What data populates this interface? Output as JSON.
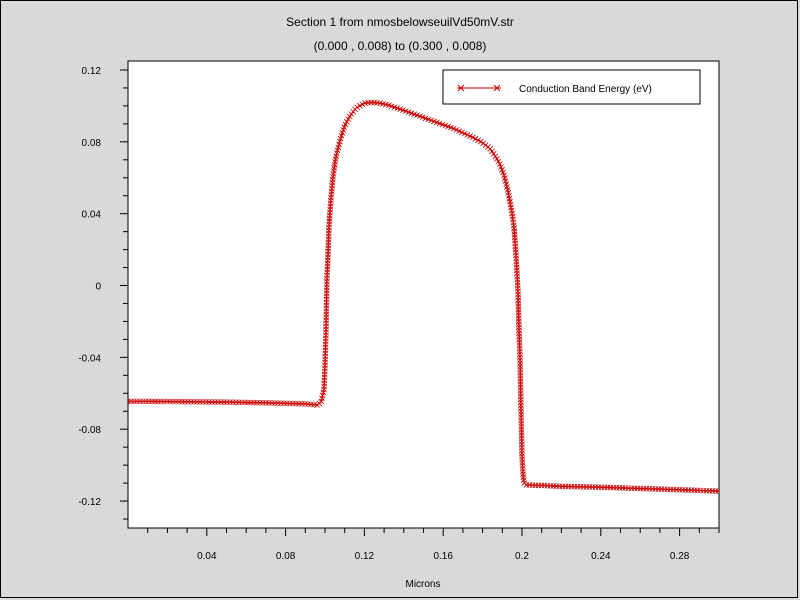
{
  "titles": {
    "line1": "Section 1 from nmosbelowseuilVd50mV.str",
    "line2": "(0.000 , 0.008) to (0.300 , 0.008)"
  },
  "chart_data": {
    "type": "line",
    "title": "Section 1 from nmosbelowseuilVd50mV.str",
    "subtitle": "(0.000 , 0.008) to (0.300 , 0.008)",
    "xlabel": "Microns",
    "ylabel": "",
    "xlim": [
      0.0,
      0.3
    ],
    "ylim": [
      -0.135,
      0.125
    ],
    "x_ticks": [
      0.04,
      0.08,
      0.12,
      0.16,
      0.2,
      0.24,
      0.28
    ],
    "x_tick_labels": [
      "0.04",
      "0.08",
      "0.12",
      "0.16",
      "0.2",
      "0.24",
      "0.28"
    ],
    "y_ticks": [
      0.12,
      0.08,
      0.04,
      0,
      -0.04,
      -0.08,
      -0.12
    ],
    "y_tick_labels": [
      "0.12",
      "0.08",
      "0.04",
      "0",
      "-0.04",
      "-0.08",
      "-0.12"
    ],
    "grid": false,
    "legend": "top-right",
    "marker": "x",
    "series": [
      {
        "name": "Conduction Band Energy (eV)",
        "color": "#cc0000",
        "x": [
          0.0,
          0.01,
          0.02,
          0.03,
          0.04,
          0.05,
          0.06,
          0.07,
          0.08,
          0.09,
          0.096,
          0.098,
          0.0995,
          0.1,
          0.1005,
          0.101,
          0.1015,
          0.102,
          0.103,
          0.104,
          0.105,
          0.106,
          0.108,
          0.11,
          0.113,
          0.116,
          0.12,
          0.124,
          0.128,
          0.132,
          0.136,
          0.14,
          0.145,
          0.15,
          0.155,
          0.16,
          0.165,
          0.17,
          0.175,
          0.18,
          0.184,
          0.187,
          0.189,
          0.191,
          0.193,
          0.194,
          0.195,
          0.196,
          0.1965,
          0.197,
          0.1975,
          0.198,
          0.1985,
          0.199,
          0.1995,
          0.2,
          0.2005,
          0.201,
          0.2015,
          0.202,
          0.203,
          0.205,
          0.21,
          0.22,
          0.24,
          0.26,
          0.28,
          0.3
        ],
        "y": [
          -0.0645,
          -0.0645,
          -0.0646,
          -0.0647,
          -0.0648,
          -0.0649,
          -0.0651,
          -0.0653,
          -0.0656,
          -0.0659,
          -0.0665,
          -0.065,
          -0.058,
          -0.045,
          -0.025,
          0.004,
          0.016,
          0.032,
          0.048,
          0.06,
          0.068,
          0.074,
          0.082,
          0.089,
          0.095,
          0.099,
          0.1015,
          0.102,
          0.1015,
          0.1005,
          0.099,
          0.0975,
          0.0955,
          0.0935,
          0.0915,
          0.0895,
          0.0875,
          0.085,
          0.0825,
          0.0795,
          0.076,
          0.071,
          0.067,
          0.061,
          0.052,
          0.046,
          0.04,
          0.032,
          0.024,
          0.016,
          0.006,
          -0.004,
          -0.026,
          -0.04,
          -0.07,
          -0.095,
          -0.1045,
          -0.1095,
          -0.1105,
          -0.111,
          -0.111,
          -0.1112,
          -0.1113,
          -0.1118,
          -0.1123,
          -0.113,
          -0.1137,
          -0.1145
        ]
      }
    ]
  }
}
